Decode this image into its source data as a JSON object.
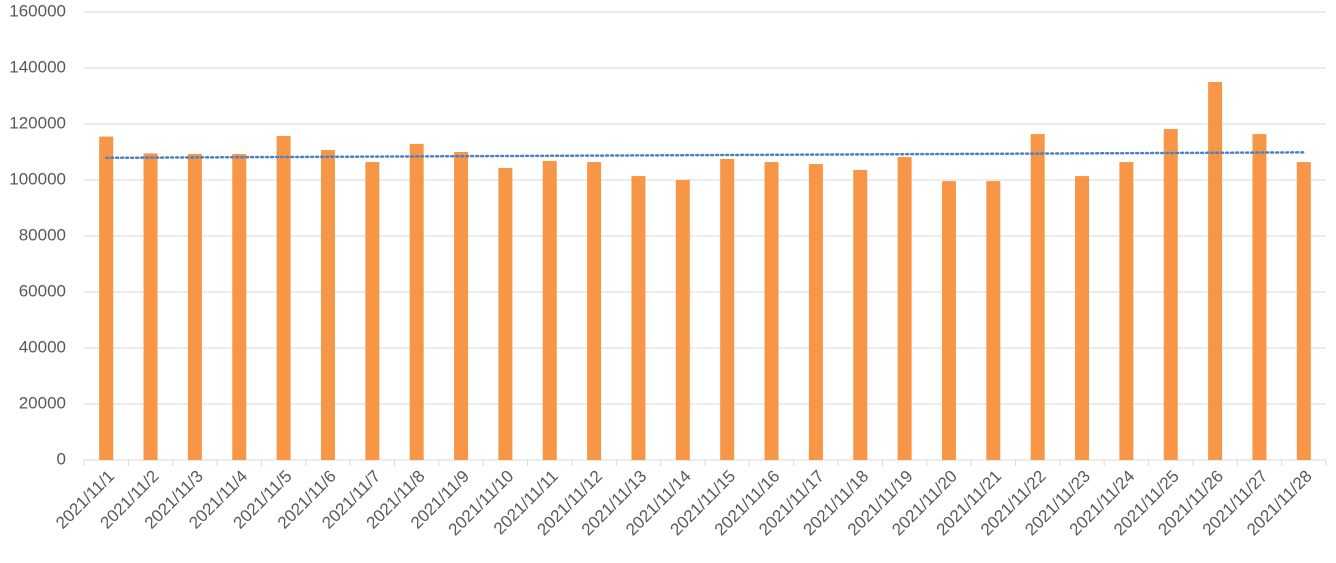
{
  "chart_data": {
    "type": "bar",
    "categories": [
      "2021/11/1",
      "2021/11/2",
      "2021/11/3",
      "2021/11/4",
      "2021/11/5",
      "2021/11/6",
      "2021/11/7",
      "2021/11/8",
      "2021/11/9",
      "2021/11/10",
      "2021/11/11",
      "2021/11/12",
      "2021/11/13",
      "2021/11/14",
      "2021/11/15",
      "2021/11/16",
      "2021/11/17",
      "2021/11/18",
      "2021/11/19",
      "2021/11/20",
      "2021/11/21",
      "2021/11/22",
      "2021/11/23",
      "2021/11/24",
      "2021/11/25",
      "2021/11/26",
      "2021/11/27",
      "2021/11/28"
    ],
    "values": [
      115500,
      109500,
      109300,
      109300,
      115700,
      110700,
      106400,
      112900,
      110000,
      104300,
      106800,
      106400,
      101400,
      100000,
      107500,
      106400,
      105700,
      103600,
      108200,
      99600,
      99600,
      116400,
      101400,
      106400,
      118200,
      135000,
      116400,
      106400
    ],
    "color": "#f79646",
    "trendline": {
      "type": "linear",
      "color": "#4f81bd"
    },
    "ylim": [
      0,
      160000
    ],
    "yticks": [
      0,
      20000,
      40000,
      60000,
      80000,
      100000,
      120000,
      140000,
      160000
    ],
    "grid": true
  }
}
